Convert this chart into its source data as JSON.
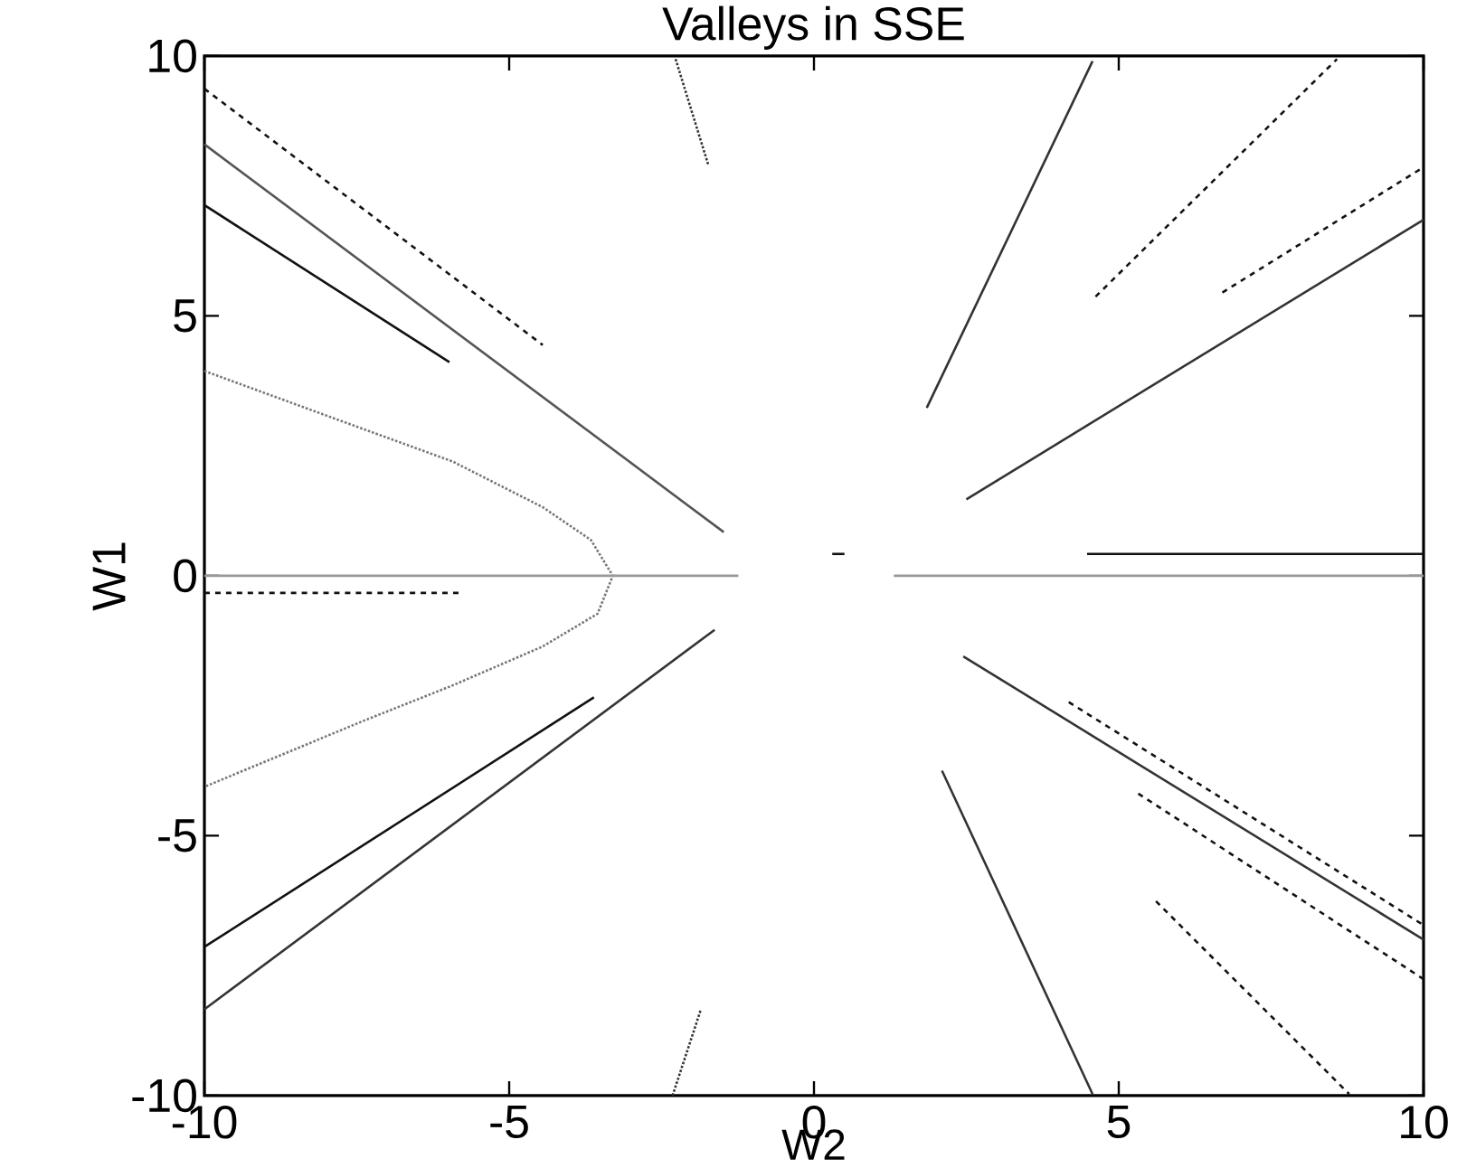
{
  "chart_data": {
    "type": "line",
    "title": "Valleys in SSE",
    "xlabel": "W2",
    "ylabel": "W1",
    "xlim": [
      -10,
      10
    ],
    "ylim": [
      -10,
      10
    ],
    "xticks": [
      -10,
      -5,
      0,
      5,
      10
    ],
    "yticks": [
      -10,
      -5,
      0,
      5,
      10
    ],
    "marker": "none",
    "series": [
      {
        "color": "#111111",
        "line_style": "dashed",
        "x": [
          -10,
          -4.45
        ],
        "values": [
          9.37,
          4.44
        ]
      },
      {
        "color": "#555555",
        "line_style": "solid",
        "x": [
          -10,
          -1.48
        ],
        "values": [
          8.3,
          0.84
        ]
      },
      {
        "color": "#111111",
        "line_style": "solid",
        "x": [
          -10,
          -5.98
        ],
        "values": [
          7.13,
          4.11
        ]
      },
      {
        "color": "#777777",
        "line_style": "dotted",
        "x": [
          -10,
          -7.41,
          -5.93,
          -4.45,
          -3.66,
          -3.3,
          -3.55,
          -4.45,
          -5.93,
          -7.41,
          -10
        ],
        "values": [
          3.94,
          2.83,
          2.2,
          1.32,
          0.69,
          0,
          -0.73,
          -1.36,
          -2.11,
          -2.8,
          -4.06
        ]
      },
      {
        "color": "#333333",
        "line_style": "dotted",
        "x": [
          -2.27,
          -1.73
        ],
        "values": [
          9.94,
          7.89
        ]
      },
      {
        "color": "#999999",
        "line_style": "solid",
        "x": [
          -10,
          -1.24
        ],
        "values": [
          0,
          0
        ]
      },
      {
        "color": "#111111",
        "line_style": "dashed",
        "x": [
          -10,
          -5.78
        ],
        "values": [
          -0.33,
          -0.33
        ]
      },
      {
        "color": "#111111",
        "line_style": "solid",
        "x": [
          -10,
          -3.61
        ],
        "values": [
          -7.14,
          -2.34
        ]
      },
      {
        "color": "#333333",
        "line_style": "solid",
        "x": [
          -10,
          -1.63
        ],
        "values": [
          -8.34,
          -1.04
        ]
      },
      {
        "color": "#333333",
        "line_style": "dotted",
        "x": [
          -2.32,
          -1.86
        ],
        "values": [
          -10,
          -8.36
        ]
      },
      {
        "color": "#333333",
        "line_style": "solid",
        "x": [
          1.85,
          4.57
        ],
        "values": [
          3.23,
          9.9
        ]
      },
      {
        "color": "#333333",
        "line_style": "solid",
        "x": [
          2.5,
          10
        ],
        "values": [
          1.47,
          6.85
        ]
      },
      {
        "color": "#111111",
        "line_style": "dashed",
        "x": [
          4.62,
          8.58
        ],
        "values": [
          5.37,
          9.94
        ]
      },
      {
        "color": "#111111",
        "line_style": "dashed",
        "x": [
          6.7,
          10
        ],
        "values": [
          5.45,
          7.86
        ]
      },
      {
        "color": "#111111",
        "line_style": "solid",
        "x": [
          4.48,
          10
        ],
        "values": [
          0.42,
          0.42
        ]
      },
      {
        "color": "#111111",
        "line_style": "solid",
        "x": [
          0.3,
          0.5
        ],
        "values": [
          0.42,
          0.42
        ]
      },
      {
        "color": "#999999",
        "line_style": "solid",
        "x": [
          1.31,
          10
        ],
        "values": [
          0,
          0
        ]
      },
      {
        "color": "#333333",
        "line_style": "solid",
        "x": [
          2.45,
          10
        ],
        "values": [
          -1.55,
          -7.0
        ]
      },
      {
        "color": "#111111",
        "line_style": "dashed",
        "x": [
          4.18,
          10
        ],
        "values": [
          -2.43,
          -6.72
        ]
      },
      {
        "color": "#111111",
        "line_style": "dashed",
        "x": [
          5.32,
          10
        ],
        "values": [
          -4.19,
          -7.76
        ]
      },
      {
        "color": "#333333",
        "line_style": "solid",
        "x": [
          2.1,
          4.57
        ],
        "values": [
          -3.75,
          -9.97
        ]
      },
      {
        "color": "#111111",
        "line_style": "dashed",
        "x": [
          5.61,
          8.78
        ],
        "values": [
          -6.26,
          -9.97
        ]
      }
    ]
  }
}
